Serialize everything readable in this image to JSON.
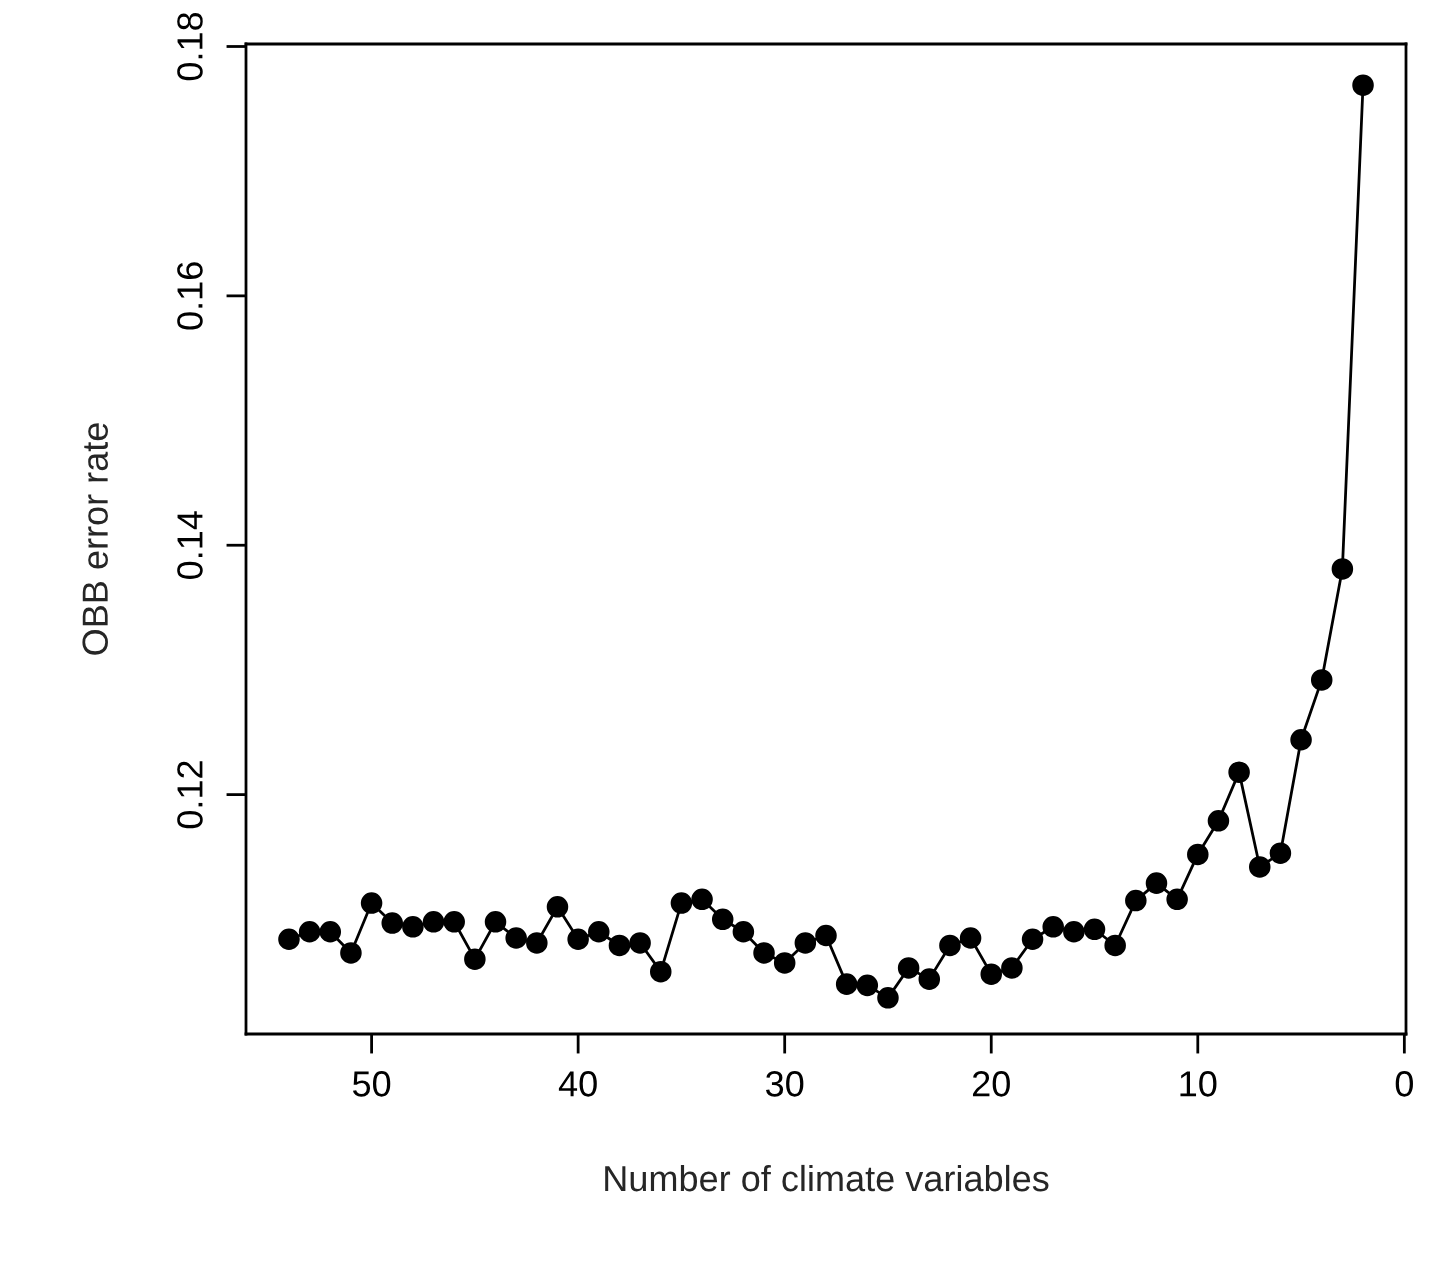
{
  "chart_data": {
    "type": "line",
    "xlabel": "Number of climate variables",
    "ylabel": "OBB error rate",
    "x": [
      54,
      53,
      52,
      51,
      50,
      49,
      48,
      47,
      46,
      45,
      44,
      43,
      42,
      41,
      40,
      39,
      38,
      37,
      36,
      35,
      34,
      33,
      32,
      31,
      30,
      29,
      28,
      27,
      26,
      25,
      24,
      23,
      22,
      21,
      20,
      19,
      18,
      17,
      16,
      15,
      14,
      13,
      12,
      11,
      10,
      9,
      8,
      7,
      6,
      5,
      4,
      3,
      2
    ],
    "series": [
      {
        "color": "#000000",
        "values": [
          0.1084,
          0.109,
          0.109,
          0.1073,
          0.1113,
          0.1097,
          0.1094,
          0.1098,
          0.1098,
          0.1068,
          0.1098,
          0.1085,
          0.1081,
          0.111,
          0.1084,
          0.109,
          0.1079,
          0.1081,
          0.1058,
          0.1113,
          0.1116,
          0.11,
          0.109,
          0.1073,
          0.1065,
          0.1081,
          0.1087,
          0.1048,
          0.1047,
          0.1037,
          0.1061,
          0.1052,
          0.1079,
          0.1085,
          0.1056,
          0.1061,
          0.1084,
          0.1094,
          0.109,
          0.1092,
          0.1079,
          0.1115,
          0.1129,
          0.1116,
          0.1152,
          0.1179,
          0.1218,
          0.1142,
          0.1153,
          0.1244,
          0.1292,
          0.1381,
          0.1769
        ]
      }
    ],
    "xlim": [
      56.08,
      -0.08
    ],
    "xticks": [
      50,
      40,
      30,
      20,
      10,
      0
    ],
    "ylim": [
      0.1008,
      0.1802
    ],
    "yticks": [
      0.12,
      0.14,
      0.16,
      0.18
    ],
    "grid": false,
    "legend": false,
    "marker": "circle",
    "line_style": "solid"
  }
}
